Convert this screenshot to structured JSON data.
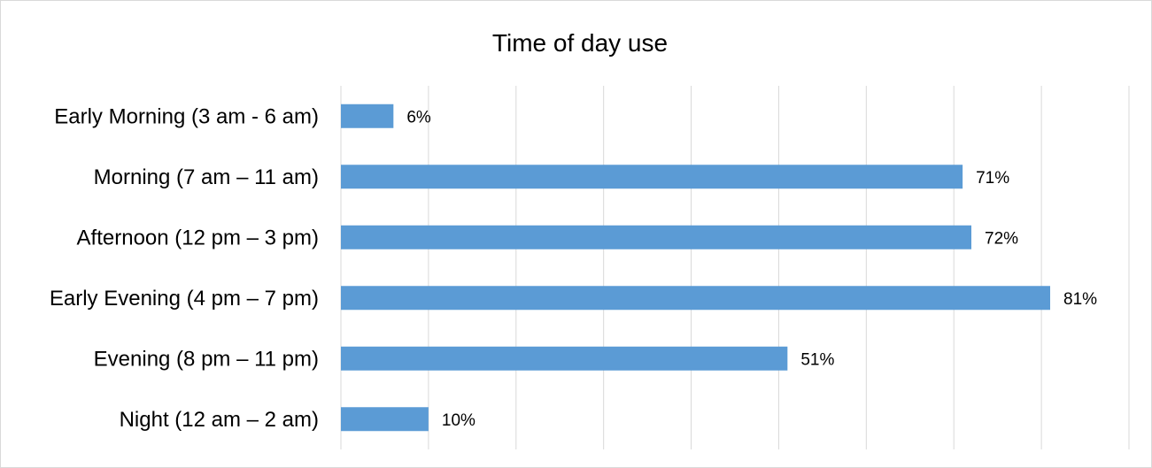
{
  "chart_data": {
    "type": "bar",
    "orientation": "horizontal",
    "title": "Time of day use",
    "xlabel": "",
    "ylabel": "",
    "xlim": [
      0,
      90
    ],
    "grid": "vertical",
    "value_format": "percent",
    "categories": [
      "Early Morning (3 am - 6 am)",
      "Morning (7 am – 11 am)",
      "Afternoon (12 pm – 3 pm)",
      "Early Evening (4 pm – 7 pm)",
      "Evening (8 pm – 11 pm)",
      "Night (12 am – 2 am)"
    ],
    "values": [
      6,
      71,
      72,
      81,
      51,
      10
    ],
    "data_labels": [
      "6%",
      "71%",
      "72%",
      "81%",
      "51%",
      "10%"
    ],
    "colors": {
      "bar": "#5b9bd5",
      "grid": "#d9d9d9",
      "text": "#000000"
    }
  }
}
